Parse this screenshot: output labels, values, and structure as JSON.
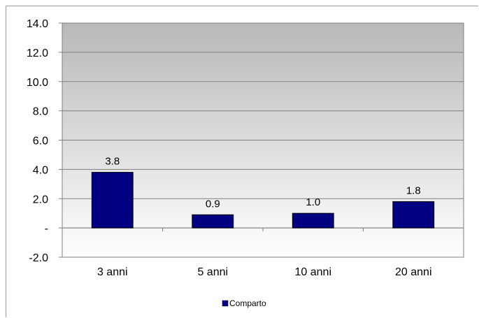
{
  "chart_data": {
    "type": "bar",
    "categories": [
      "3 anni",
      "5 anni",
      "10 anni",
      "20 anni"
    ],
    "series": [
      {
        "name": "Comparto",
        "values": [
          3.8,
          0.9,
          1.0,
          1.8
        ],
        "color": "#000080"
      }
    ],
    "data_labels": [
      "3.8",
      "0.9",
      "1.0",
      "1.8"
    ],
    "ylim": [
      -2.0,
      14.0
    ],
    "yticks": [
      -2.0,
      0,
      2.0,
      4.0,
      6.0,
      8.0,
      10.0,
      12.0,
      14.0
    ],
    "ytick_labels": [
      "-2.0",
      "-",
      "2.0",
      "4.0",
      "6.0",
      "8.0",
      "10.0",
      "12.0",
      "14.0"
    ],
    "grid": true,
    "legend_position": "bottom",
    "background_gradient": [
      "#b8b8b8",
      "#ffffff"
    ]
  }
}
